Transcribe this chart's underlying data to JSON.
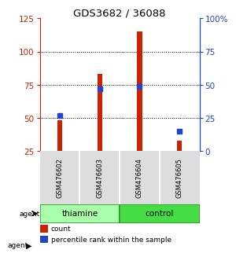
{
  "title": "GDS3682 / 36088",
  "samples": [
    "GSM476602",
    "GSM476603",
    "GSM476604",
    "GSM476605"
  ],
  "counts": [
    48,
    83,
    115,
    33
  ],
  "percentiles": [
    27,
    47,
    49,
    15
  ],
  "groups": [
    "thiamine",
    "thiamine",
    "control",
    "control"
  ],
  "thiamine_color": "#AAFFAA",
  "control_color": "#44DD44",
  "border_color": "#339933",
  "bar_color": "#CC2200",
  "blue_color": "#2244CC",
  "ylim_left": [
    25,
    125
  ],
  "ylim_right": [
    0,
    100
  ],
  "yticks_left": [
    25,
    50,
    75,
    100,
    125
  ],
  "yticks_right": [
    0,
    25,
    50,
    75,
    100
  ],
  "ytick_labels_right": [
    "0",
    "25",
    "50",
    "75",
    "100%"
  ],
  "background_color": "#ffffff",
  "bar_width": 0.12
}
